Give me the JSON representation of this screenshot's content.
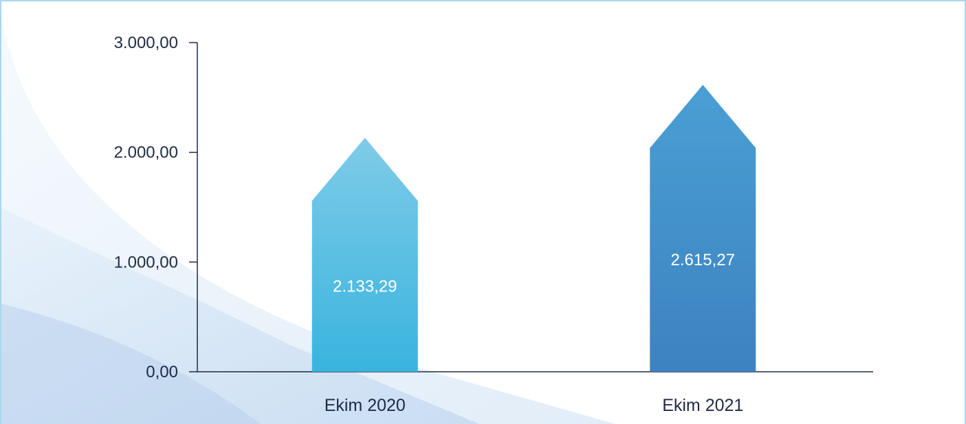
{
  "chart_data": {
    "type": "bar",
    "title": "",
    "xlabel": "",
    "ylabel": "",
    "categories": [
      "Ekim 2020",
      "Ekim 2021"
    ],
    "values": [
      2133.29,
      2615.27
    ],
    "value_labels": [
      "2.133,29",
      "2.615,27"
    ],
    "ylim": [
      0,
      3000
    ],
    "yticks": [
      0,
      1000,
      2000,
      3000
    ],
    "ytick_labels": [
      "0,00",
      "1.000,00",
      "2.000,00",
      "3.000,00"
    ],
    "bar_shape": "arrow-up",
    "grid": false,
    "legend": "none",
    "colors": {
      "bar_1_top": "#7fcbe8",
      "bar_1_bottom": "#39b4de",
      "bar_2_top": "#4a9fd4",
      "bar_2_bottom": "#3d82c1",
      "axis": "#1f2a44",
      "frame": "#a8d8ec"
    }
  }
}
